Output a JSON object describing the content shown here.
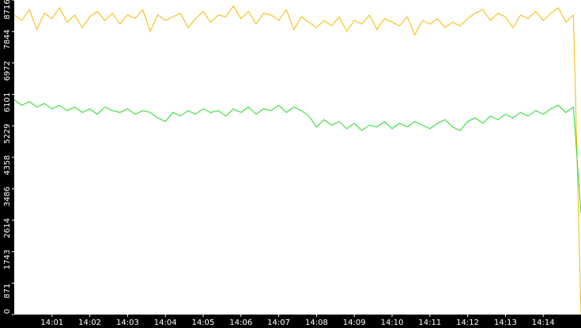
{
  "chart_data": {
    "type": "line",
    "xlim": [
      0,
      15
    ],
    "xticks": [
      {
        "value": 1,
        "label": "14:01"
      },
      {
        "value": 2,
        "label": "14:02"
      },
      {
        "value": 3,
        "label": "14:03"
      },
      {
        "value": 4,
        "label": "14:04"
      },
      {
        "value": 5,
        "label": "14:05"
      },
      {
        "value": 6,
        "label": "14:06"
      },
      {
        "value": 7,
        "label": "14:07"
      },
      {
        "value": 8,
        "label": "14:08"
      },
      {
        "value": 9,
        "label": "14:09"
      },
      {
        "value": 10,
        "label": "14:10"
      },
      {
        "value": 11,
        "label": "14:11"
      },
      {
        "value": 12,
        "label": "14:12"
      },
      {
        "value": 13,
        "label": "14:13"
      },
      {
        "value": 14,
        "label": "14:14"
      }
    ],
    "ylim": [
      0,
      8716
    ],
    "yticks": [
      0,
      871,
      1743,
      2614,
      3486,
      4358,
      5229,
      6101,
      6972,
      7844,
      8716
    ],
    "x": [
      0,
      0.2,
      0.4,
      0.6,
      0.8,
      1,
      1.2,
      1.4,
      1.6,
      1.8,
      2,
      2.2,
      2.4,
      2.6,
      2.8,
      3,
      3.2,
      3.4,
      3.6,
      3.8,
      4,
      4.2,
      4.4,
      4.6,
      4.8,
      5,
      5.2,
      5.4,
      5.6,
      5.8,
      6,
      6.2,
      6.4,
      6.6,
      6.8,
      7,
      7.2,
      7.4,
      7.6,
      7.8,
      8,
      8.2,
      8.4,
      8.6,
      8.8,
      9,
      9.2,
      9.4,
      9.6,
      9.8,
      10,
      10.2,
      10.4,
      10.6,
      10.8,
      11,
      11.2,
      11.4,
      11.6,
      11.8,
      12,
      12.2,
      12.4,
      12.6,
      12.8,
      13,
      13.2,
      13.4,
      13.6,
      13.8,
      14,
      14.2,
      14.4,
      14.6,
      14.8,
      15
    ],
    "series": [
      {
        "color": "#f5b800",
        "values": [
          8300,
          8150,
          8450,
          7900,
          8350,
          8200,
          8500,
          8100,
          8300,
          7950,
          8250,
          8400,
          8150,
          8350,
          8050,
          8300,
          8200,
          8450,
          7850,
          8300,
          8150,
          8250,
          8350,
          7950,
          8200,
          8400,
          8100,
          8300,
          8250,
          8550,
          8200,
          8400,
          8050,
          8350,
          8300,
          8150,
          8450,
          7900,
          8250,
          8100,
          7950,
          8150,
          8000,
          8250,
          7850,
          8150,
          8050,
          8300,
          7900,
          8200,
          8100,
          8000,
          8250,
          7750,
          8150,
          8050,
          8200,
          7950,
          8100,
          8000,
          8200,
          8350,
          8450,
          8150,
          8350,
          8250,
          7950,
          8300,
          8200,
          8400,
          8150,
          8350,
          8500,
          8100,
          8300,
          0
        ]
      },
      {
        "color": "#22dd22",
        "values": [
          5950,
          5800,
          5900,
          5750,
          5850,
          5700,
          5800,
          5650,
          5750,
          5600,
          5700,
          5550,
          5750,
          5650,
          5600,
          5700,
          5550,
          5650,
          5600,
          5450,
          5350,
          5600,
          5500,
          5650,
          5550,
          5700,
          5600,
          5650,
          5500,
          5700,
          5600,
          5750,
          5550,
          5700,
          5650,
          5800,
          5600,
          5750,
          5650,
          5500,
          5200,
          5400,
          5250,
          5350,
          5150,
          5300,
          5100,
          5250,
          5200,
          5350,
          5150,
          5300,
          5200,
          5350,
          5250,
          5150,
          5300,
          5400,
          5200,
          5100,
          5350,
          5450,
          5300,
          5500,
          5400,
          5550,
          5450,
          5600,
          5500,
          5650,
          5550,
          5700,
          5800,
          5600,
          5750,
          2800
        ]
      }
    ]
  }
}
